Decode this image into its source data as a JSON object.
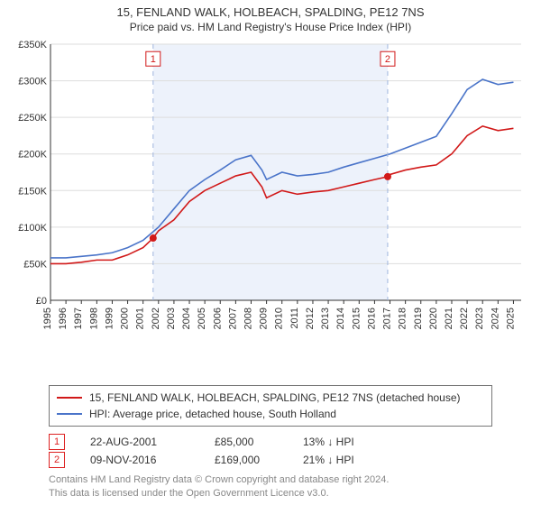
{
  "title": "15, FENLAND WALK, HOLBEACH, SPALDING, PE12 7NS",
  "subtitle": "Price paid vs. HM Land Registry's House Price Index (HPI)",
  "chart": {
    "type": "line",
    "background_color": "#ffffff",
    "shaded_region_color": "#edf2fb",
    "grid_color": "#dddddd",
    "axis_color": "#333333",
    "tick_fontsize": 11,
    "ylim": [
      0,
      350000
    ],
    "ytick_step": 50000,
    "ylabels": [
      "£0",
      "£50K",
      "£100K",
      "£150K",
      "£200K",
      "£250K",
      "£300K",
      "£350K"
    ],
    "xlim": [
      1995,
      2025.5
    ],
    "xticks": [
      1995,
      1996,
      1997,
      1998,
      1999,
      2000,
      2001,
      2002,
      2003,
      2004,
      2005,
      2006,
      2007,
      2008,
      2009,
      2010,
      2011,
      2012,
      2013,
      2014,
      2015,
      2016,
      2017,
      2018,
      2019,
      2020,
      2021,
      2022,
      2023,
      2024,
      2025
    ],
    "shaded_region": {
      "xstart": 2001.65,
      "xend": 2016.85
    },
    "series": [
      {
        "id": "property",
        "color": "#d11919",
        "width": 1.6,
        "label": "15, FENLAND WALK, HOLBEACH, SPALDING, PE12 7NS (detached house)",
        "points": [
          [
            1995,
            50000
          ],
          [
            1996,
            50000
          ],
          [
            1997,
            52000
          ],
          [
            1998,
            55000
          ],
          [
            1999,
            55000
          ],
          [
            2000,
            62000
          ],
          [
            2001,
            72000
          ],
          [
            2001.65,
            85000
          ],
          [
            2002,
            95000
          ],
          [
            2003,
            110000
          ],
          [
            2004,
            135000
          ],
          [
            2005,
            150000
          ],
          [
            2006,
            160000
          ],
          [
            2007,
            170000
          ],
          [
            2008,
            175000
          ],
          [
            2008.7,
            155000
          ],
          [
            2009,
            140000
          ],
          [
            2010,
            150000
          ],
          [
            2011,
            145000
          ],
          [
            2012,
            148000
          ],
          [
            2013,
            150000
          ],
          [
            2014,
            155000
          ],
          [
            2015,
            160000
          ],
          [
            2016,
            165000
          ],
          [
            2016.85,
            169000
          ],
          [
            2017,
            172000
          ],
          [
            2018,
            178000
          ],
          [
            2019,
            182000
          ],
          [
            2020,
            185000
          ],
          [
            2021,
            200000
          ],
          [
            2022,
            225000
          ],
          [
            2023,
            238000
          ],
          [
            2024,
            232000
          ],
          [
            2025,
            235000
          ]
        ]
      },
      {
        "id": "hpi",
        "color": "#4a74c9",
        "width": 1.6,
        "label": "HPI: Average price, detached house, South Holland",
        "points": [
          [
            1995,
            58000
          ],
          [
            1996,
            58000
          ],
          [
            1997,
            60000
          ],
          [
            1998,
            62000
          ],
          [
            1999,
            65000
          ],
          [
            2000,
            72000
          ],
          [
            2001,
            82000
          ],
          [
            2002,
            100000
          ],
          [
            2003,
            125000
          ],
          [
            2004,
            150000
          ],
          [
            2005,
            165000
          ],
          [
            2006,
            178000
          ],
          [
            2007,
            192000
          ],
          [
            2008,
            198000
          ],
          [
            2008.7,
            178000
          ],
          [
            2009,
            165000
          ],
          [
            2010,
            175000
          ],
          [
            2011,
            170000
          ],
          [
            2012,
            172000
          ],
          [
            2013,
            175000
          ],
          [
            2014,
            182000
          ],
          [
            2015,
            188000
          ],
          [
            2016,
            194000
          ],
          [
            2017,
            200000
          ],
          [
            2018,
            208000
          ],
          [
            2019,
            216000
          ],
          [
            2020,
            224000
          ],
          [
            2021,
            255000
          ],
          [
            2022,
            288000
          ],
          [
            2023,
            302000
          ],
          [
            2024,
            295000
          ],
          [
            2025,
            298000
          ]
        ]
      }
    ],
    "markers": [
      {
        "id": "1",
        "x": 2001.65,
        "y": 85000,
        "badge_y": 330000,
        "color": "#d11919"
      },
      {
        "id": "2",
        "x": 2016.85,
        "y": 169000,
        "badge_y": 330000,
        "color": "#d11919"
      }
    ]
  },
  "legend": [
    {
      "swatch": "#d11919",
      "text": "15, FENLAND WALK, HOLBEACH, SPALDING, PE12 7NS (detached house)"
    },
    {
      "swatch": "#4a74c9",
      "text": "HPI: Average price, detached house, South Holland"
    }
  ],
  "transactions": [
    {
      "badge": "1",
      "date": "22-AUG-2001",
      "price": "£85,000",
      "delta": "13% ↓ HPI"
    },
    {
      "badge": "2",
      "date": "09-NOV-2016",
      "price": "£169,000",
      "delta": "21% ↓ HPI"
    }
  ],
  "footer": {
    "line1": "Contains HM Land Registry data © Crown copyright and database right 2024.",
    "line2": "This data is licensed under the Open Government Licence v3.0."
  }
}
